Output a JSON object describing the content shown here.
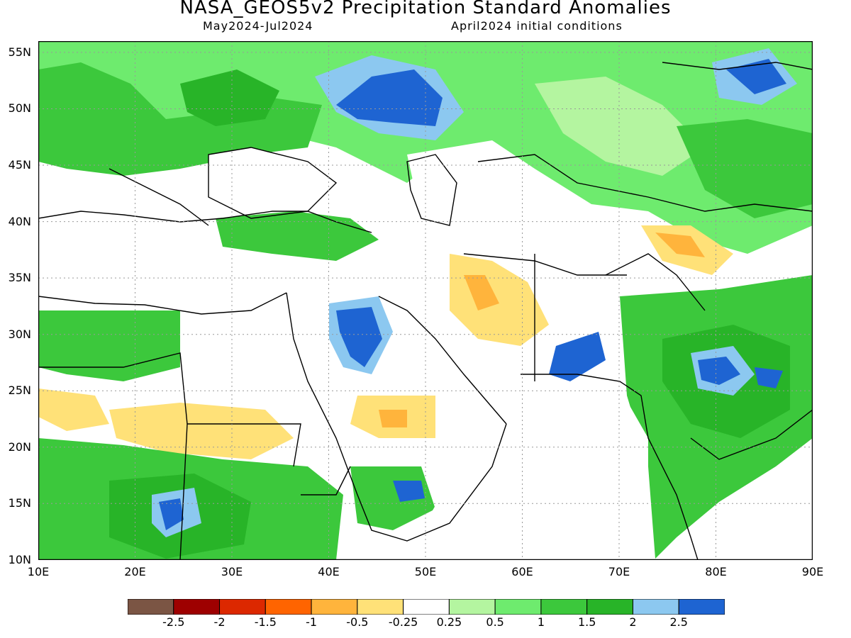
{
  "title": "NASA_GEOS5v2 Precipitation Standard Anomalies",
  "period": "May2024-Jul2024",
  "initial_conditions": "April2024 initial conditions",
  "lat_labels": [
    "55N",
    "50N",
    "45N",
    "40N",
    "35N",
    "30N",
    "25N",
    "20N",
    "15N",
    "10N"
  ],
  "lon_labels": [
    "10E",
    "20E",
    "30E",
    "40E",
    "50E",
    "60E",
    "70E",
    "80E",
    "90E"
  ],
  "map_extent": {
    "lon": [
      10,
      90
    ],
    "lat": [
      10,
      56
    ]
  },
  "colorbar": {
    "colors": [
      "#7b5544",
      "#9e0000",
      "#dc2800",
      "#ff6400",
      "#ffb43c",
      "#ffe178",
      "#ffffff",
      "#b4f5a0",
      "#6eeb6e",
      "#3cc83c",
      "#28b428",
      "#8cc8f0",
      "#1e64d2"
    ],
    "labels": [
      "-2.5",
      "-2",
      "-1.5",
      "-1",
      "-0.5",
      "-0.25",
      "0.25",
      "0.5",
      "1",
      "1.5",
      "2",
      "2.5"
    ]
  }
}
